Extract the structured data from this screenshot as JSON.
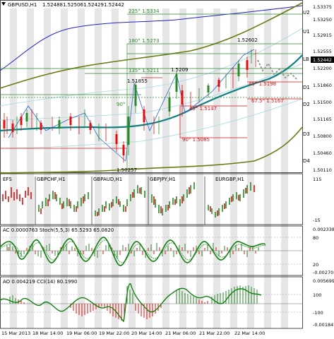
{
  "symbol": {
    "name": "GBPUSD,H1",
    "open": "1.52488",
    "high": "1.52506",
    "low": "1.52429",
    "close": "1.52442"
  },
  "main_panel": {
    "price_axis": [
      "1.53375",
      "1.53250",
      "1.52915",
      "1.52555",
      "1.52200",
      "1.51860",
      "1.51500",
      "1.51165",
      "1.50800",
      "1.50460",
      "1.50110"
    ],
    "current_price": "1.52442",
    "levels": [
      "U2",
      "U1",
      "LB",
      "D1",
      "D2",
      "D3",
      "D4"
    ],
    "annotations": {
      "a225": "225° 1.5334",
      "a180": "180° 1.5273",
      "a135": "135° 1.5211",
      "a90_left": "90°",
      "a45": "45° 1.5147",
      "a90": "90° 1.5085",
      "a675": "67.5° 1.5167",
      "a45r": "45° 1.5198",
      "high1": "1.51855",
      "high2": "1.5209",
      "high3": "1.52602",
      "low1": "1.50257"
    }
  },
  "mini_panel": {
    "labels": [
      "EFS",
      "GBPCHF,H1",
      "GBPAUD,H1",
      "GBPJPY,H1",
      "EURGBP,H1"
    ],
    "axis": [
      "115",
      "-15"
    ]
  },
  "ac_stoch_panel": {
    "title": "AC 0.0000763  Stoch(5,5,3) 65.5293 65.0820",
    "axis": [
      "0.002338",
      "80",
      "20",
      "-0.002705"
    ]
  },
  "ao_cci_panel": {
    "title": "AO 0.004219  CCI(14) 80.1990",
    "axis": [
      "0.005699",
      "100",
      "-100",
      "-0.001847"
    ]
  },
  "time_axis": [
    "15 Mar 2013",
    "18 Mar 14:00",
    "19 Mar 06:00",
    "19 Mar 22:00",
    "20 Mar 14:00",
    "21 Mar 06:00",
    "21 Mar 22:00",
    "22 Mar 14:00"
  ],
  "colors": {
    "bull": "#2a8a2a",
    "bear": "#e01010",
    "ma_blue": "#2020c0",
    "ma_olive": "#6b7a10",
    "ma_teal": "#108080",
    "grid_band": "#e6e6e6"
  }
}
